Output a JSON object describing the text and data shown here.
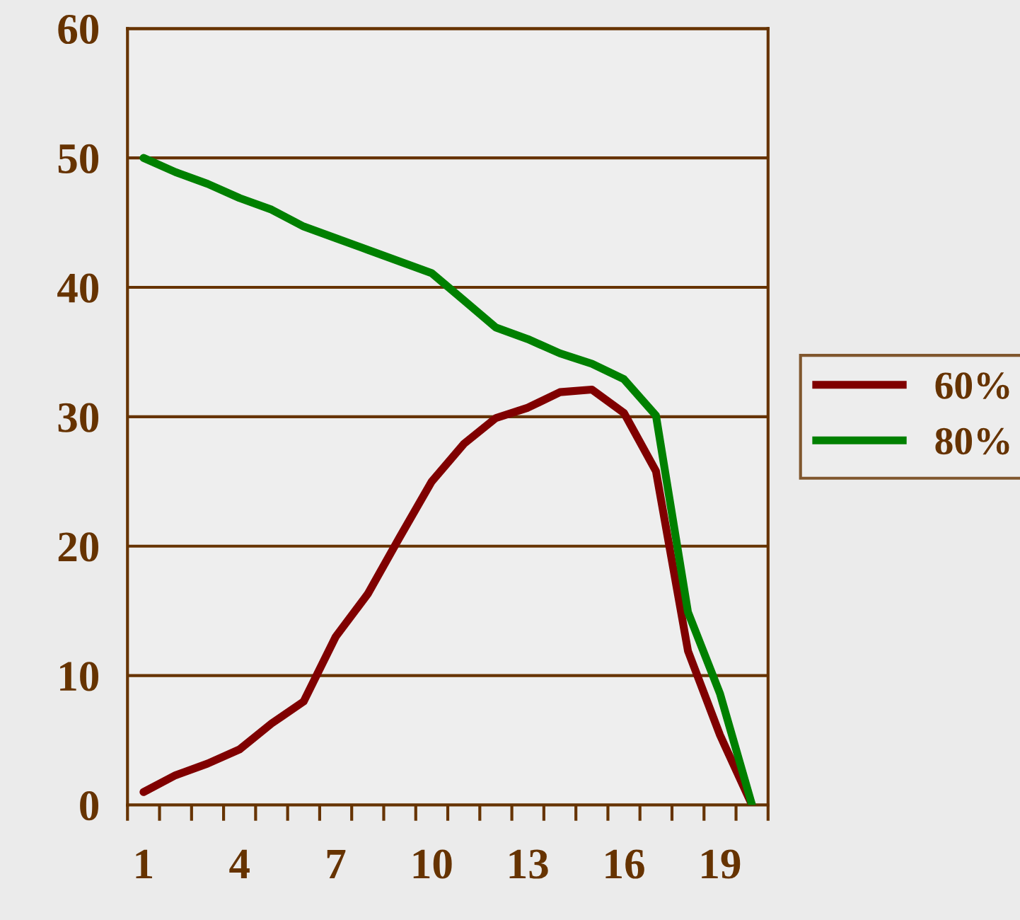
{
  "chart_data": {
    "type": "line",
    "categories": [
      "1",
      null,
      null,
      "4",
      null,
      null,
      "7",
      null,
      null,
      "10",
      null,
      null,
      "13",
      null,
      null,
      "16",
      null,
      null,
      "19",
      null
    ],
    "series": [
      {
        "name": "60%",
        "color": "#800000",
        "values": [
          1.0,
          2.3,
          3.2,
          4.3,
          6.3,
          8.0,
          13.0,
          16.3,
          20.7,
          25.0,
          27.9,
          29.9,
          30.7,
          31.9,
          32.1,
          30.3,
          25.8,
          11.9,
          5.4,
          0
        ]
      },
      {
        "name": "80%",
        "color": "#008000",
        "values": [
          50.0,
          48.9,
          48.0,
          46.9,
          46.0,
          44.7,
          43.8,
          42.9,
          42.0,
          41.1,
          39.0,
          36.9,
          36.0,
          34.9,
          34.1,
          32.9,
          30.1,
          14.9,
          8.6,
          0
        ]
      }
    ],
    "ylim": [
      0,
      60
    ],
    "yticks": [
      0,
      10,
      20,
      30,
      40,
      50,
      60
    ],
    "grid": "y",
    "legend": "right",
    "marker": "none",
    "line_style": "solid"
  }
}
